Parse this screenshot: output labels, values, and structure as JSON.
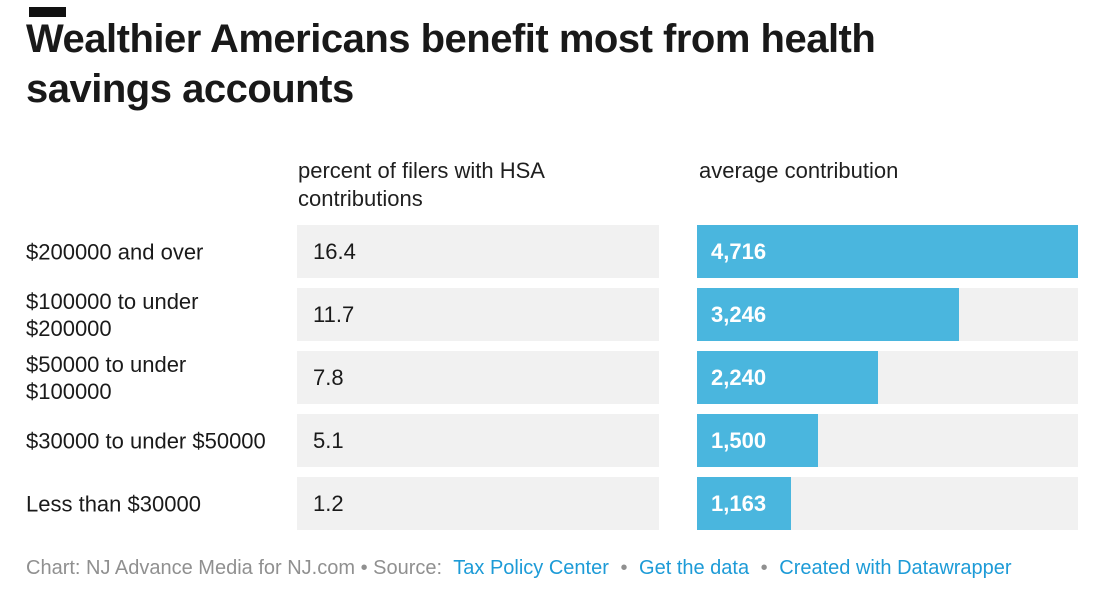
{
  "title": "Wealthier Americans benefit most from health savings accounts",
  "columns": {
    "col1_header": "percent of filers with HSA contributions",
    "col2_header": "average contribution"
  },
  "rows": [
    {
      "label": "$200000 and over",
      "percent_label": "16.4",
      "contribution": 4716,
      "contribution_label": "4,716"
    },
    {
      "label": "$100000 to under $200000",
      "percent_label": "11.7",
      "contribution": 3246,
      "contribution_label": "3,246"
    },
    {
      "label": "$50000 to under $100000",
      "percent_label": "7.8",
      "contribution": 2240,
      "contribution_label": "2,240"
    },
    {
      "label": "$30000 to under $50000",
      "percent_label": "5.1",
      "contribution": 1500,
      "contribution_label": "1,500"
    },
    {
      "label": "Less than $30000",
      "percent_label": "1.2",
      "contribution": 1163,
      "contribution_label": "1,163"
    }
  ],
  "chart_data": {
    "type": "bar",
    "title": "Wealthier Americans benefit most from health savings accounts",
    "categories": [
      "$200000 and over",
      "$100000 to under $200000",
      "$50000 to under $100000",
      "$30000 to under $50000",
      "Less than $30000"
    ],
    "series": [
      {
        "name": "percent of filers with HSA contributions",
        "values": [
          16.4,
          11.7,
          7.8,
          5.1,
          1.2
        ]
      },
      {
        "name": "average contribution",
        "values": [
          4716,
          3246,
          2240,
          1500,
          1163
        ]
      }
    ],
    "bar_axis_max": 4716,
    "grid": false,
    "legend_position": "none",
    "orientation": "horizontal"
  },
  "footer": {
    "credit": "Chart: NJ Advance Media for NJ.com • Source:",
    "separator": "•",
    "links": [
      {
        "label": "Tax Policy Center"
      },
      {
        "label": "Get the data"
      },
      {
        "label": "Created with Datawrapper"
      }
    ]
  },
  "colors": {
    "bar_blue": "#4ab6de",
    "cell_gray": "#f1f1f1",
    "bar_value_text": "#ffffff",
    "link_blue": "#1d9bd7",
    "footer_gray": "#909090",
    "text_dark": "#1a1a1a"
  }
}
